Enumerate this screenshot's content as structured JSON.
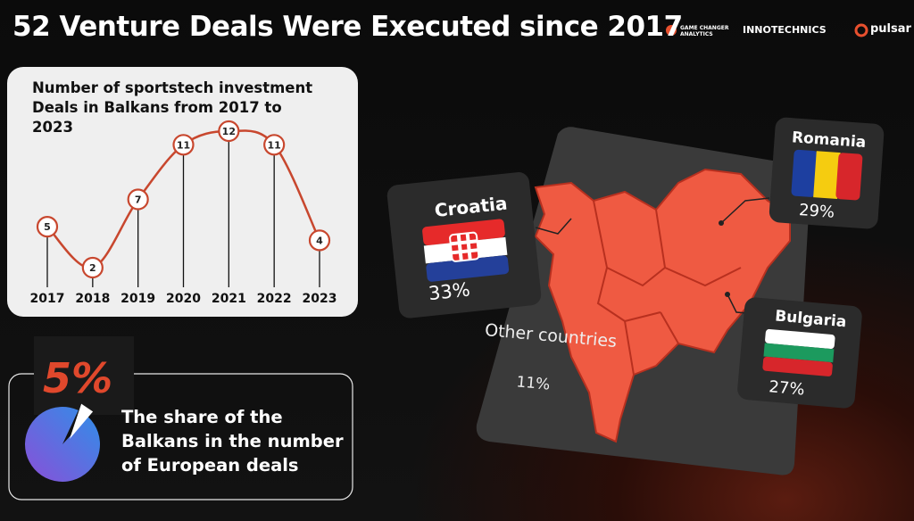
{
  "header": {
    "title": "52 Venture Deals Were Executed since 2017",
    "logos": [
      "GAME CHANGER ANALYTICS",
      "INNOTECHNICS",
      "pulsar"
    ]
  },
  "chart_data": [
    {
      "type": "line",
      "title": "Number of sportstech investment Deals in Balkans from 2017 to 2023",
      "categories": [
        "2017",
        "2018",
        "2019",
        "2020",
        "2021",
        "2022",
        "2023"
      ],
      "values": [
        5,
        2,
        7,
        11,
        12,
        11,
        4
      ],
      "color": "#c8472e"
    },
    {
      "type": "pie",
      "values": [
        5
      ],
      "value_labels": [
        "5%"
      ],
      "caption": "The share of the Balkans in the number of European deals"
    }
  ],
  "map": {
    "regions": [
      {
        "name": "Croatia",
        "share": "33%"
      },
      {
        "name": "Romania",
        "share": "29%"
      },
      {
        "name": "Bulgaria",
        "share": "27%"
      },
      {
        "name": "Other countries",
        "share": "11%"
      }
    ]
  }
}
